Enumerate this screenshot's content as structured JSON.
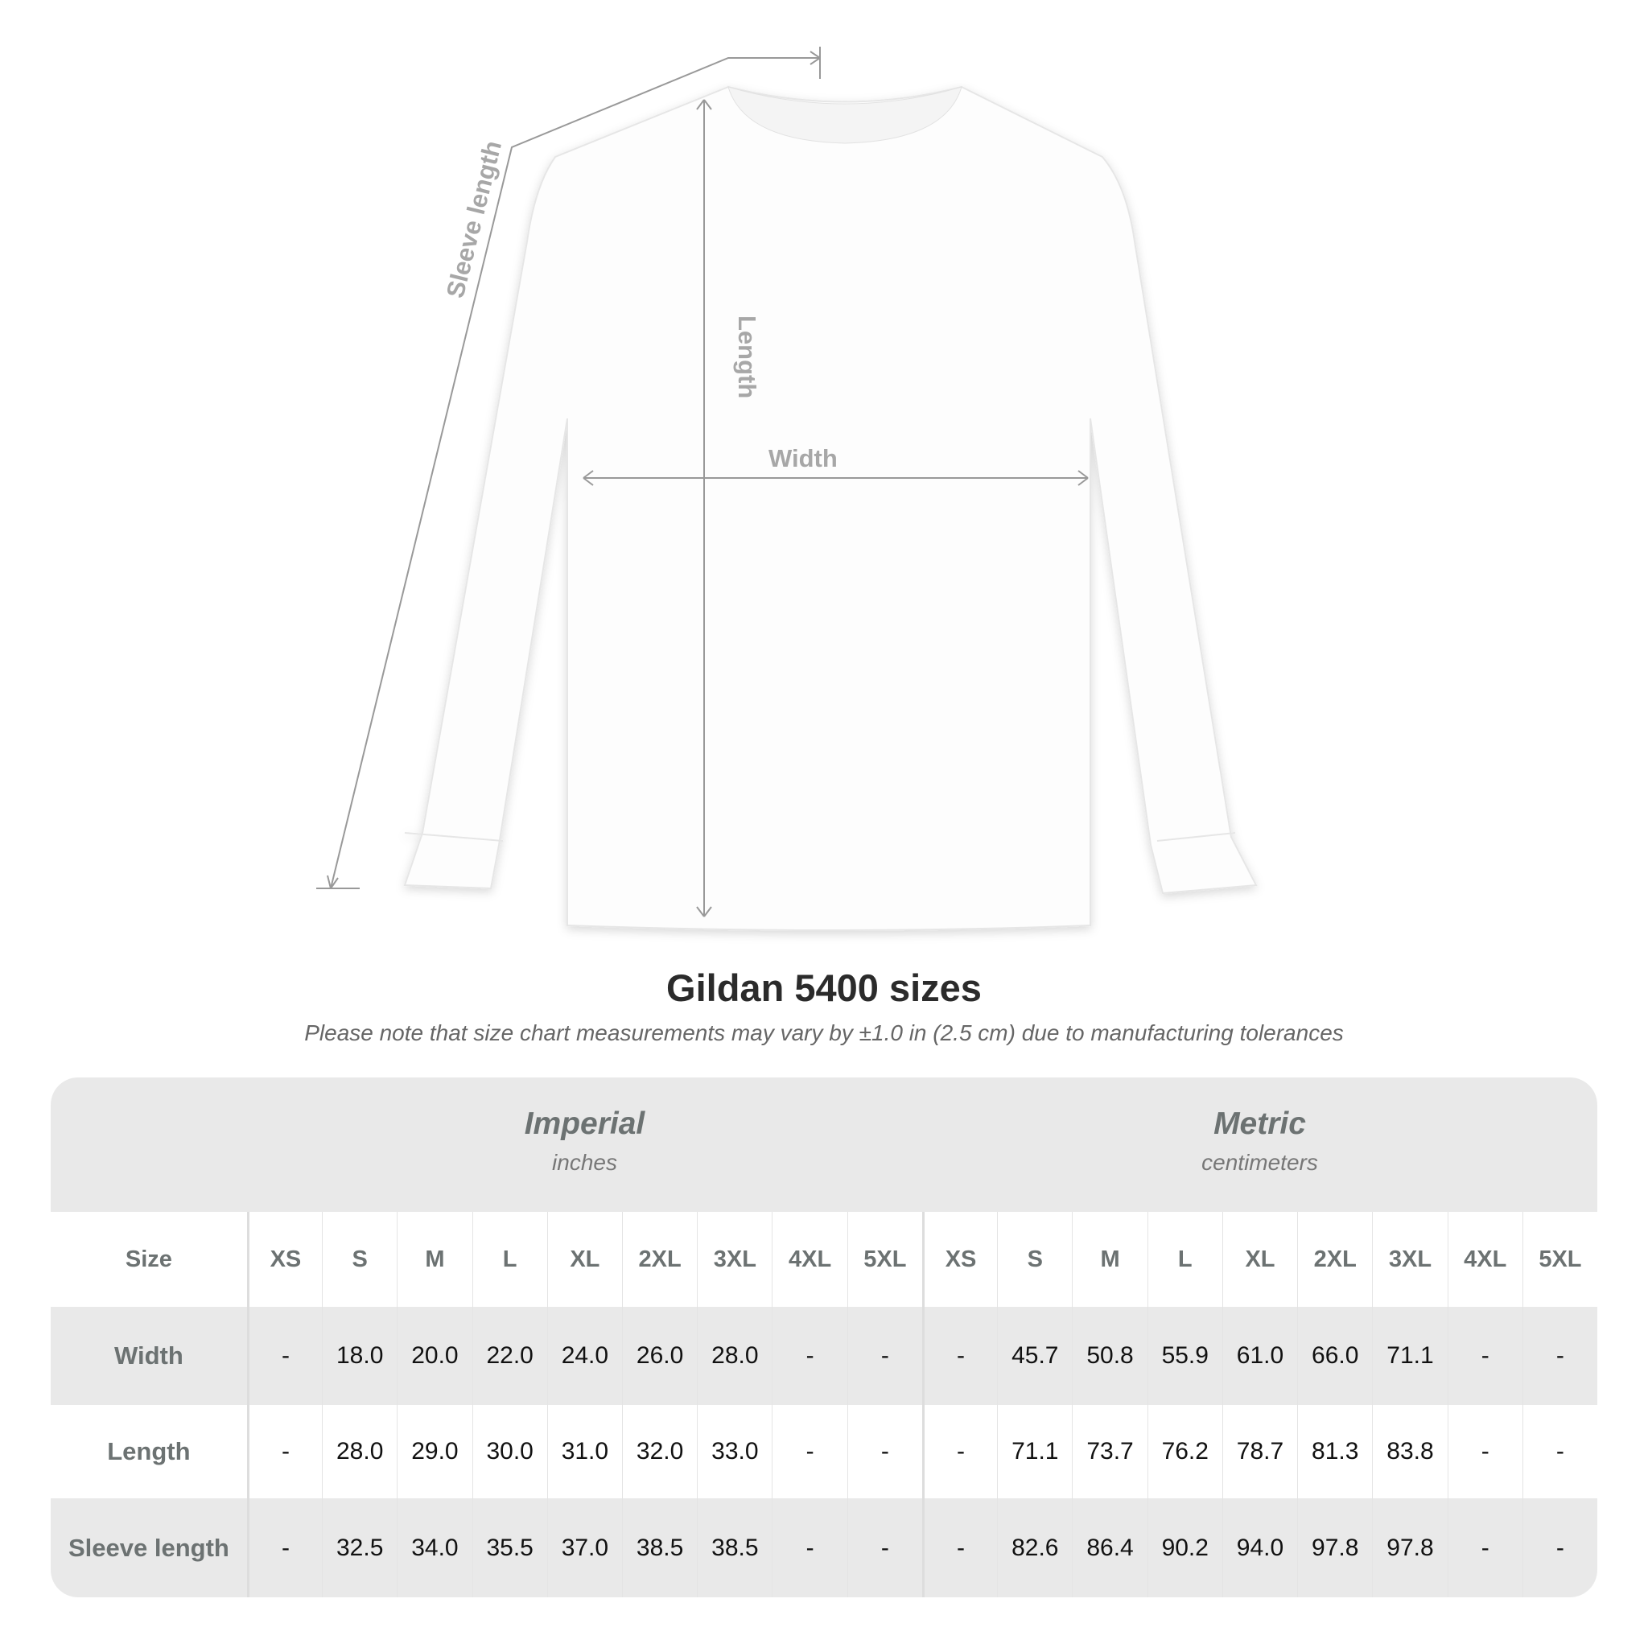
{
  "diagram": {
    "labels": {
      "sleeve": "Sleeve length",
      "length": "Length",
      "width": "Width"
    },
    "shirt_color": "#ffffff"
  },
  "title": "Gildan 5400 sizes",
  "note": "Please note that size chart measurements may vary by ±1.0 in (2.5 cm) due to manufacturing tolerances",
  "table": {
    "imperial": {
      "name": "Imperial",
      "unit": "inches"
    },
    "metric": {
      "name": "Metric",
      "unit": "centimeters"
    },
    "size_label": "Size",
    "sizes": [
      "XS",
      "S",
      "M",
      "L",
      "XL",
      "2XL",
      "3XL",
      "4XL",
      "5XL"
    ],
    "rows": [
      {
        "label": "Width",
        "imperial": [
          "-",
          "18.0",
          "20.0",
          "22.0",
          "24.0",
          "26.0",
          "28.0",
          "-",
          "-"
        ],
        "metric": [
          "-",
          "45.7",
          "50.8",
          "55.9",
          "61.0",
          "66.0",
          "71.1",
          "-",
          "-"
        ]
      },
      {
        "label": "Length",
        "imperial": [
          "-",
          "28.0",
          "29.0",
          "30.0",
          "31.0",
          "32.0",
          "33.0",
          "-",
          "-"
        ],
        "metric": [
          "-",
          "71.1",
          "73.7",
          "76.2",
          "78.7",
          "81.3",
          "83.8",
          "-",
          "-"
        ]
      },
      {
        "label": "Sleeve length",
        "imperial": [
          "-",
          "32.5",
          "34.0",
          "35.5",
          "37.0",
          "38.5",
          "38.5",
          "-",
          "-"
        ],
        "metric": [
          "-",
          "82.6",
          "86.4",
          "90.2",
          "94.0",
          "97.8",
          "97.8",
          "-",
          "-"
        ]
      }
    ]
  }
}
